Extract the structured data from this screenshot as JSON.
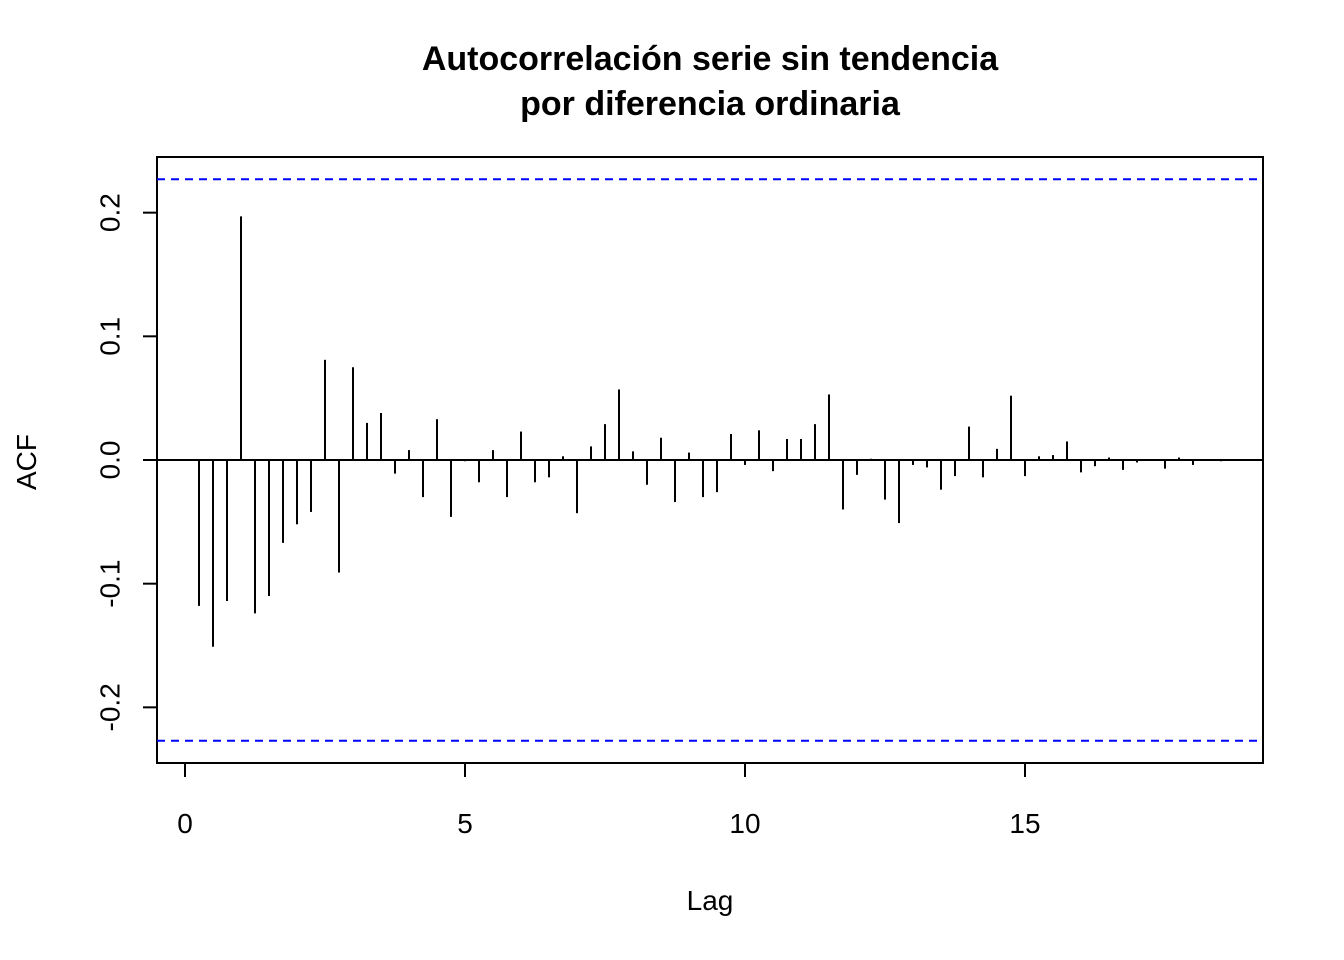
{
  "chart_data": {
    "type": "bar",
    "title_lines": [
      "Autocorrelación serie sin tendencia",
      "por diferencia ordinaria"
    ],
    "xlabel": "Lag",
    "ylabel": "ACF",
    "xlim": [
      -0.5,
      19.25
    ],
    "ylim": [
      -0.245,
      0.245
    ],
    "x_ticks": [
      0,
      5,
      10,
      15
    ],
    "y_ticks": [
      -0.2,
      -0.1,
      0.0,
      0.1,
      0.2
    ],
    "y_tick_labels": [
      "-0.2",
      "-0.1",
      "0.0",
      "0.1",
      "0.2"
    ],
    "confidence_bounds": [
      0.227,
      -0.227
    ],
    "bound_color": "#0000ff",
    "line_color": "#000000",
    "lags": [
      0.25,
      0.5,
      0.75,
      1.0,
      1.25,
      1.5,
      1.75,
      2.0,
      2.25,
      2.5,
      2.75,
      3.0,
      3.25,
      3.5,
      3.75,
      4.0,
      4.25,
      4.5,
      4.75,
      5.0,
      5.25,
      5.5,
      5.75,
      6.0,
      6.25,
      6.5,
      6.75,
      7.0,
      7.25,
      7.5,
      7.75,
      8.0,
      8.25,
      8.5,
      8.75,
      9.0,
      9.25,
      9.5,
      9.75,
      10.0,
      10.25,
      10.5,
      10.75,
      11.0,
      11.25,
      11.5,
      11.75,
      12.0,
      12.25,
      12.5,
      12.75,
      13.0,
      13.25,
      13.5,
      13.75,
      14.0,
      14.25,
      14.5,
      14.75,
      15.0,
      15.25,
      15.5,
      15.75,
      16.0,
      16.25,
      16.5,
      16.75,
      17.0,
      17.25,
      17.5,
      17.75,
      18.0,
      18.25,
      18.5
    ],
    "values": [
      -0.118,
      -0.151,
      -0.114,
      0.197,
      -0.124,
      -0.11,
      -0.067,
      -0.052,
      -0.042,
      0.081,
      -0.091,
      0.075,
      0.03,
      0.038,
      -0.011,
      0.008,
      -0.03,
      0.033,
      -0.046,
      -0.001,
      -0.018,
      0.008,
      -0.03,
      0.023,
      -0.018,
      -0.014,
      0.003,
      -0.043,
      0.011,
      0.029,
      0.057,
      0.007,
      -0.02,
      0.018,
      -0.034,
      0.006,
      -0.03,
      -0.026,
      0.021,
      -0.004,
      0.024,
      -0.009,
      0.017,
      0.017,
      0.029,
      0.053,
      -0.04,
      -0.012,
      0.001,
      -0.032,
      -0.051,
      -0.004,
      -0.006,
      -0.024,
      -0.013,
      0.027,
      -0.014,
      0.009,
      0.052,
      -0.013,
      0.003,
      0.004,
      0.015,
      -0.01,
      -0.005,
      0.002,
      -0.008,
      -0.002,
      0.0,
      -0.007,
      0.002,
      -0.004,
      0.0,
      -0.001
    ]
  }
}
